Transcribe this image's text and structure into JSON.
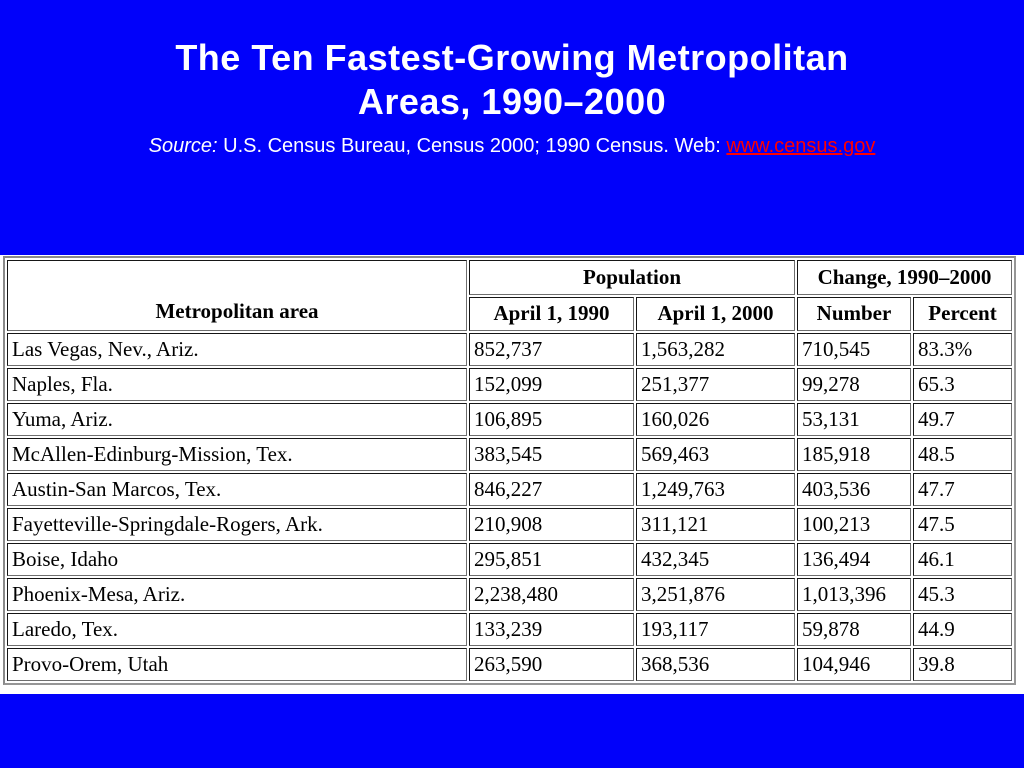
{
  "colors": {
    "slide_background": "#0101fa",
    "band_background": "#ffffff",
    "title_text": "#ffffff",
    "link_text": "#ff0000",
    "table_text": "#000000"
  },
  "title": {
    "line1": "The Ten Fastest-Growing Metropolitan",
    "line2": "Areas, 1990–2000"
  },
  "source": {
    "label": "Source:",
    "text": " U.S. Census Bureau, Census 2000; 1990 Census. Web: ",
    "link_text": "www.census.gov"
  },
  "table": {
    "header": {
      "metro_area": "Metropolitan area",
      "population_group": "Population",
      "change_group": "Change, 1990–2000",
      "col_1990": "April 1, 1990",
      "col_2000": "April 1, 2000",
      "col_number": "Number",
      "col_percent": "Percent"
    },
    "rows": [
      {
        "area": "Las Vegas, Nev., Ariz.",
        "pop_1990": "852,737",
        "pop_2000": "1,563,282",
        "number": "710,545",
        "percent": "83.3%"
      },
      {
        "area": "Naples, Fla.",
        "pop_1990": "152,099",
        "pop_2000": "251,377",
        "number": "99,278",
        "percent": "65.3"
      },
      {
        "area": "Yuma, Ariz.",
        "pop_1990": "106,895",
        "pop_2000": "160,026",
        "number": "53,131",
        "percent": "49.7"
      },
      {
        "area": "McAllen-Edinburg-Mission, Tex.",
        "pop_1990": "383,545",
        "pop_2000": "569,463",
        "number": "185,918",
        "percent": "48.5"
      },
      {
        "area": "Austin-San Marcos, Tex.",
        "pop_1990": "846,227",
        "pop_2000": "1,249,763",
        "number": "403,536",
        "percent": "47.7"
      },
      {
        "area": "Fayetteville-Springdale-Rogers, Ark.",
        "pop_1990": "210,908",
        "pop_2000": "311,121",
        "number": "100,213",
        "percent": "47.5"
      },
      {
        "area": "Boise, Idaho",
        "pop_1990": "295,851",
        "pop_2000": "432,345",
        "number": "136,494",
        "percent": "46.1"
      },
      {
        "area": "Phoenix-Mesa, Ariz.",
        "pop_1990": "2,238,480",
        "pop_2000": "3,251,876",
        "number": "1,013,396",
        "percent": "45.3"
      },
      {
        "area": "Laredo, Tex.",
        "pop_1990": "133,239",
        "pop_2000": "193,117",
        "number": "59,878",
        "percent": "44.9"
      },
      {
        "area": "Provo-Orem, Utah",
        "pop_1990": "263,590",
        "pop_2000": "368,536",
        "number": "104,946",
        "percent": "39.8"
      }
    ]
  }
}
